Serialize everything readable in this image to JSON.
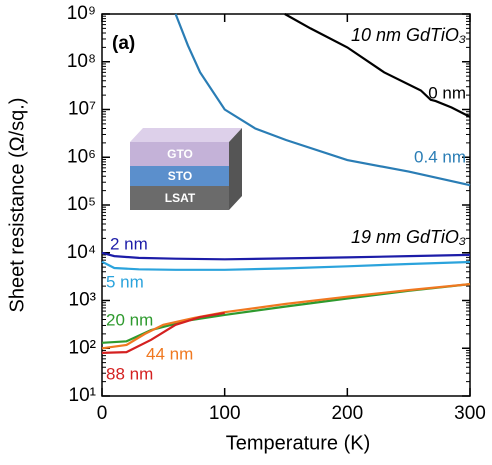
{
  "chart_data": {
    "type": "line",
    "xlabel": "Temperature (K)",
    "ylabel": "Sheet resistance (Ω/sq.)",
    "annotations": [
      "(a)",
      "10 nm GdTiO₃",
      "19 nm GdTiO₃"
    ],
    "inset_labels": [
      "GTO",
      "STO",
      "LSAT"
    ],
    "xlim": [
      0,
      300
    ],
    "xticks": [
      0,
      100,
      200,
      300
    ],
    "ylim": [
      10,
      1000000000
    ],
    "log_y": true,
    "yticks": [
      {
        "value": 10,
        "label": "10¹"
      },
      {
        "value": 100,
        "label": "10²"
      },
      {
        "value": 1000,
        "label": "10³"
      },
      {
        "value": 10000,
        "label": "10⁴"
      },
      {
        "value": 100000,
        "label": "10⁵"
      },
      {
        "value": 1000000,
        "label": "10⁶"
      },
      {
        "value": 10000000,
        "label": "10⁷"
      },
      {
        "value": 100000000,
        "label": "10⁸"
      },
      {
        "value": 1000000000,
        "label": "10⁹"
      }
    ],
    "series": [
      {
        "name": "0 nm",
        "color": "#000000",
        "x": [
          149,
          170,
          200,
          230,
          260,
          268,
          272,
          285,
          300
        ],
        "values": [
          1000000000,
          500000000,
          200000000,
          60000000,
          25000000,
          16000000,
          15000000,
          11000000,
          7000000
        ]
      },
      {
        "name": "0.4 nm",
        "color": "#2a7db5",
        "x": [
          60,
          70,
          80,
          100,
          125,
          150,
          200,
          250,
          300
        ],
        "values": [
          1000000000,
          220000000,
          60000000,
          10000000,
          4000000,
          2300000,
          870000,
          500000,
          260000
        ]
      },
      {
        "name": "2 nm",
        "color": "#1c1ca8",
        "x": [
          0,
          10,
          30,
          60,
          100,
          150,
          200,
          250,
          300
        ],
        "values": [
          10000,
          8500,
          7800,
          7500,
          7300,
          7600,
          8000,
          8500,
          9000
        ]
      },
      {
        "name": "5 nm",
        "color": "#2ba3dc",
        "x": [
          0,
          10,
          30,
          60,
          100,
          150,
          200,
          250,
          300
        ],
        "values": [
          6500,
          4800,
          4500,
          4400,
          4400,
          4700,
          5200,
          5800,
          6400
        ]
      },
      {
        "name": "20 nm",
        "color": "#2e9a2e",
        "x": [
          0,
          20,
          40,
          70,
          100,
          150,
          200,
          250,
          300
        ],
        "values": [
          130,
          140,
          240,
          380,
          500,
          750,
          1100,
          1600,
          2200
        ]
      },
      {
        "name": "44 nm",
        "color": "#f07820",
        "x": [
          0,
          20,
          35,
          50,
          75,
          100,
          150,
          200,
          250,
          300
        ],
        "values": [
          100,
          117,
          200,
          310,
          430,
          570,
          850,
          1200,
          1650,
          2200
        ]
      },
      {
        "name": "88 nm",
        "color": "#d42020",
        "x": [
          0,
          20,
          40,
          60,
          80,
          100
        ],
        "values": [
          80,
          83,
          150,
          310,
          450,
          550
        ]
      }
    ]
  }
}
